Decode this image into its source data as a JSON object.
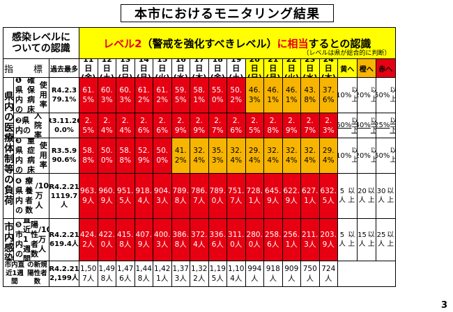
{
  "title": "本市におけるモニタリング結果",
  "level_header": [
    "感染レベルに",
    "ついての認識"
  ],
  "banner": {
    "level": "レベル2",
    "paren": "（警戒を強化すべきレベル）",
    "suffix_red": "に相当",
    "suffix": "するとの認識",
    "note": "（レベルは県が総合的に判断）"
  },
  "index_label": "指　標",
  "max_label": "過去最多",
  "dates": [
    {
      "d": "11日",
      "w": "(金)"
    },
    {
      "d": "12日",
      "w": "(土)"
    },
    {
      "d": "13日",
      "w": "(日)"
    },
    {
      "d": "14日",
      "w": "(月)"
    },
    {
      "d": "15日",
      "w": "(火)"
    },
    {
      "d": "16日",
      "w": "(水)"
    },
    {
      "d": "17日",
      "w": "(木)"
    },
    {
      "d": "18日",
      "w": "(金)"
    },
    {
      "d": "19日",
      "w": "(土)"
    },
    {
      "d": "20日",
      "w": "(日)"
    },
    {
      "d": "21日",
      "w": "(月)"
    },
    {
      "d": "22日",
      "w": "(火)"
    },
    {
      "d": "23日",
      "w": "(水)"
    },
    {
      "d": "24日",
      "w": "(木)"
    }
  ],
  "level_cols": [
    "黄へ",
    "橙へ",
    "赤へ"
  ],
  "side_labels": [
    "県内の医療体制等の負荷",
    "市内感染状況"
  ],
  "rows": [
    {
      "label": [
        "❶県内の",
        "確保病床",
        "使用率"
      ],
      "max": [
        "R4.2.3",
        "79.1%"
      ],
      "values": [
        "61.5%",
        "60.3%",
        "60.3%",
        "61.2%",
        "61.2%",
        "59.5%",
        "58.1%",
        "55.0%",
        "50.2%",
        "46.3%",
        "46.1%",
        "46.1%",
        "43.8%",
        "37.6%"
      ],
      "colors": [
        "r",
        "r",
        "r",
        "r",
        "r",
        "r",
        "r",
        "r",
        "r",
        "o",
        "o",
        "o",
        "o",
        "o"
      ],
      "th": [
        [
          "10%",
          "以上"
        ],
        [
          "20%",
          "以上"
        ],
        [
          "50%",
          "以上"
        ]
      ]
    },
    {
      "label": [
        "❷県内の",
        "入院率"
      ],
      "max": [
        "R3.11.26",
        "0.0%"
      ],
      "values": [
        "2.5%",
        "2.4%",
        "2.4%",
        "2.6%",
        "2.6%",
        "2.9%",
        "2.9%",
        "2.7%",
        "2.6%",
        "2.5%",
        "2.8%",
        "2.9%",
        "2.7%",
        "2.3%"
      ],
      "colors": [
        "r",
        "r",
        "r",
        "r",
        "r",
        "r",
        "r",
        "r",
        "r",
        "r",
        "r",
        "r",
        "r",
        "r"
      ],
      "th": [
        [
          "60%",
          "以下"
        ],
        [
          "40%",
          "以下"
        ],
        [
          "25%",
          "以下"
        ]
      ]
    },
    {
      "label": [
        "❸県内の",
        "重症病床",
        "使用率"
      ],
      "max": [
        "R3.5.9",
        "90.6%"
      ],
      "values": [
        "58.8%",
        "50.0%",
        "58.8%",
        "52.9%",
        "50.0%",
        "41.2%",
        "32.4%",
        "35.3%",
        "32.4%",
        "29.4%",
        "32.4%",
        "32.4%",
        "32.4%",
        "29.4%"
      ],
      "colors": [
        "r",
        "r",
        "r",
        "r",
        "r",
        "o",
        "o",
        "o",
        "o",
        "o",
        "o",
        "o",
        "o",
        "o"
      ],
      "th": [
        [
          "10%",
          "以上"
        ],
        [
          "20%",
          "以上"
        ],
        [
          "50%",
          "以上"
        ]
      ]
    },
    {
      "label": [
        "❹県内の",
        "療養者数",
        "/10万人"
      ],
      "max": [
        "R4.2.21",
        "1119.7人"
      ],
      "values": [
        "963.9人",
        "960.9人",
        "951.5人",
        "918.4人",
        "904.3人",
        "789.8人",
        "786.7人",
        "789.0人",
        "751.7人",
        "728.1人",
        "645.9人",
        "622.9人",
        "627.1人",
        "632.5人"
      ],
      "colors": [
        "r",
        "r",
        "r",
        "r",
        "r",
        "r",
        "r",
        "r",
        "r",
        "r",
        "r",
        "r",
        "r",
        "r"
      ],
      "th": [
        [
          "5人",
          "以上"
        ],
        [
          "20人",
          "以上"
        ],
        [
          "30人",
          "以上"
        ]
      ]
    },
    {
      "label": [
        "❺市内の",
        "直近1週間",
        "陽性者数",
        "/10万人"
      ],
      "max": [
        "R4.2.21",
        "619.4人"
      ],
      "values": [
        "424.2人",
        "422.0人",
        "415.8人",
        "407.9人",
        "400.3人",
        "386.8人",
        "372.4人",
        "336.6人",
        "311.0人",
        "280.0人",
        "258.6人",
        "256.1人",
        "211.3人",
        "203.9人"
      ],
      "colors": [
        "r",
        "r",
        "r",
        "r",
        "r",
        "r",
        "r",
        "r",
        "r",
        "r",
        "r",
        "r",
        "r",
        "r"
      ],
      "th": [
        [
          "5人",
          "以上"
        ],
        [
          "15人",
          "以上"
        ],
        [
          "25人",
          "以上"
        ]
      ]
    }
  ],
  "foot": {
    "label": [
      "市内直近1週間",
      "の新規陽性者数"
    ],
    "max": [
      "R4.2.21",
      "2,199人"
    ],
    "values": [
      "1,507人",
      "1,498人",
      "1,476人",
      "1,448人",
      "1,421人",
      "1,373人",
      "1,322人",
      "1,195人",
      "1,104人",
      "994人",
      "918人",
      "909人",
      "750人",
      "724人"
    ]
  },
  "page_number": "3"
}
